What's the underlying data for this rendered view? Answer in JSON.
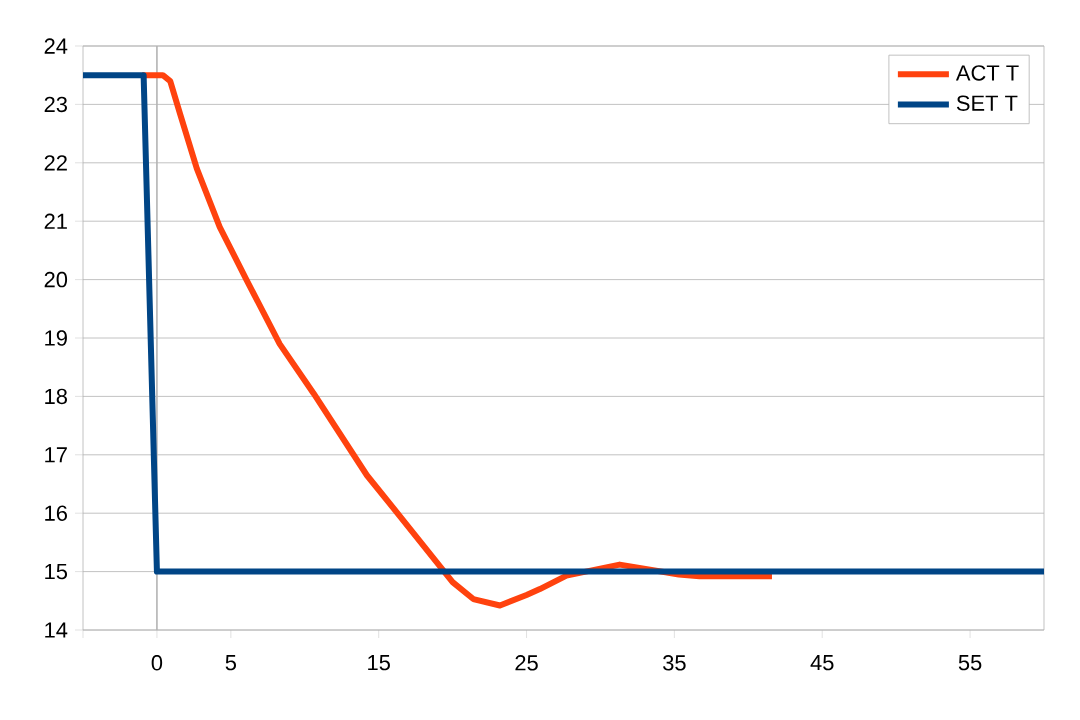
{
  "chart_data": {
    "type": "line",
    "xlim": [
      -5,
      60
    ],
    "ylim": [
      14,
      24
    ],
    "xticks": [
      {
        "value": -5,
        "label": null
      },
      0,
      5,
      15,
      25,
      35,
      45,
      55
    ],
    "yticks": [
      14,
      15,
      16,
      17,
      18,
      19,
      20,
      21,
      22,
      23,
      24
    ],
    "grid": "y",
    "legend": "top right",
    "marker": "none",
    "line_style": "solid",
    "ref_lines": [
      {
        "axis": "x",
        "value": 0,
        "color": "#b3b3b3"
      }
    ],
    "series": [
      {
        "name": "ACT T",
        "color": "#ff420e",
        "x": [
          -1,
          0.4,
          0.9,
          1.55,
          2.7,
          4.25,
          6.05,
          8.3,
          10.6,
          12.4,
          14.2,
          16.4,
          18.2,
          20.0,
          21.4,
          23.2,
          25.0,
          25.9,
          27.7,
          31.3,
          35.3,
          36.7,
          41.6
        ],
        "values": [
          23.5,
          23.5,
          23.4,
          22.85,
          21.9,
          20.9,
          20.0,
          18.9,
          18.05,
          17.35,
          16.65,
          15.96,
          15.39,
          14.82,
          14.53,
          14.42,
          14.6,
          14.7,
          14.93,
          15.12,
          14.95,
          14.92,
          14.92
        ]
      },
      {
        "name": "SET T",
        "color": "#004586",
        "x": [
          -5,
          -0.9,
          0,
          60
        ],
        "values": [
          23.5,
          23.5,
          15,
          15
        ]
      }
    ]
  }
}
